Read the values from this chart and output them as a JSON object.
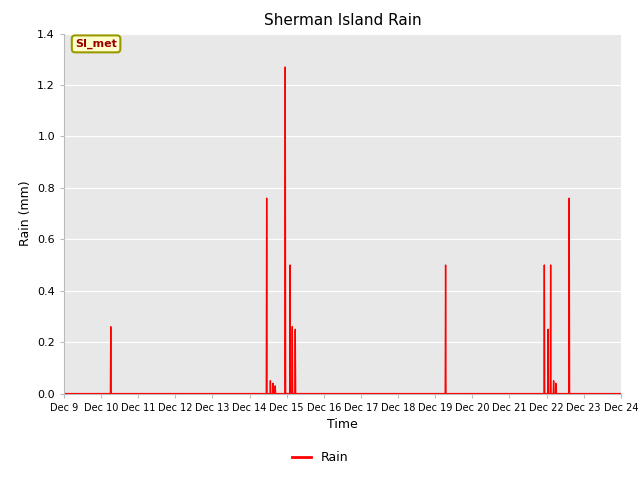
{
  "title": "Sherman Island Rain",
  "xlabel": "Time",
  "ylabel": "Rain (mm)",
  "ylim": [
    0,
    1.4
  ],
  "yticks": [
    0.0,
    0.2,
    0.4,
    0.6,
    0.8,
    1.0,
    1.2,
    1.4
  ],
  "line_color": "#FF0000",
  "line_width": 1.0,
  "fig_bg_color": "#FFFFFF",
  "plot_bg_color": "#E8E8E8",
  "label_name": "SI_met",
  "legend_label": "Rain",
  "xlim": [
    9.0,
    24.0
  ],
  "x_tick_positions": [
    9,
    10,
    11,
    12,
    13,
    14,
    15,
    16,
    17,
    18,
    19,
    20,
    21,
    22,
    23,
    24
  ],
  "x_tick_labels": [
    "Dec 9",
    "Dec 10",
    "Dec 11",
    "Dec 12",
    "Dec 13",
    "Dec 14",
    "Dec 15",
    "Dec 16",
    "Dec 17",
    "Dec 18",
    "Dec 19",
    "Dec 20",
    "Dec 21",
    "Dec 22",
    "Dec 23",
    "Dec 24"
  ],
  "data_points": [
    [
      9.0,
      0.0
    ],
    [
      10.25,
      0.0
    ],
    [
      10.26,
      0.26
    ],
    [
      10.27,
      0.0
    ],
    [
      14.45,
      0.0
    ],
    [
      14.46,
      0.76
    ],
    [
      14.47,
      0.0
    ],
    [
      14.55,
      0.0
    ],
    [
      14.56,
      0.05
    ],
    [
      14.57,
      0.0
    ],
    [
      14.62,
      0.0
    ],
    [
      14.63,
      0.04
    ],
    [
      14.64,
      0.0
    ],
    [
      14.68,
      0.0
    ],
    [
      14.69,
      0.03
    ],
    [
      14.7,
      0.0
    ],
    [
      14.95,
      0.0
    ],
    [
      14.96,
      1.27
    ],
    [
      14.97,
      0.0
    ],
    [
      15.08,
      0.0
    ],
    [
      15.09,
      0.5
    ],
    [
      15.1,
      0.0
    ],
    [
      15.14,
      0.0
    ],
    [
      15.15,
      0.26
    ],
    [
      15.16,
      0.0
    ],
    [
      15.22,
      0.0
    ],
    [
      15.23,
      0.25
    ],
    [
      15.24,
      0.0
    ],
    [
      19.27,
      0.0
    ],
    [
      19.28,
      0.5
    ],
    [
      19.29,
      0.0
    ],
    [
      21.93,
      0.0
    ],
    [
      21.94,
      0.5
    ],
    [
      21.95,
      0.0
    ],
    [
      22.03,
      0.0
    ],
    [
      22.04,
      0.25
    ],
    [
      22.05,
      0.0
    ],
    [
      22.1,
      0.0
    ],
    [
      22.11,
      0.5
    ],
    [
      22.12,
      0.0
    ],
    [
      22.18,
      0.0
    ],
    [
      22.19,
      0.05
    ],
    [
      22.2,
      0.0
    ],
    [
      22.24,
      0.0
    ],
    [
      22.25,
      0.04
    ],
    [
      22.26,
      0.0
    ],
    [
      22.6,
      0.0
    ],
    [
      22.61,
      0.76
    ],
    [
      22.62,
      0.0
    ],
    [
      24.0,
      0.0
    ]
  ]
}
